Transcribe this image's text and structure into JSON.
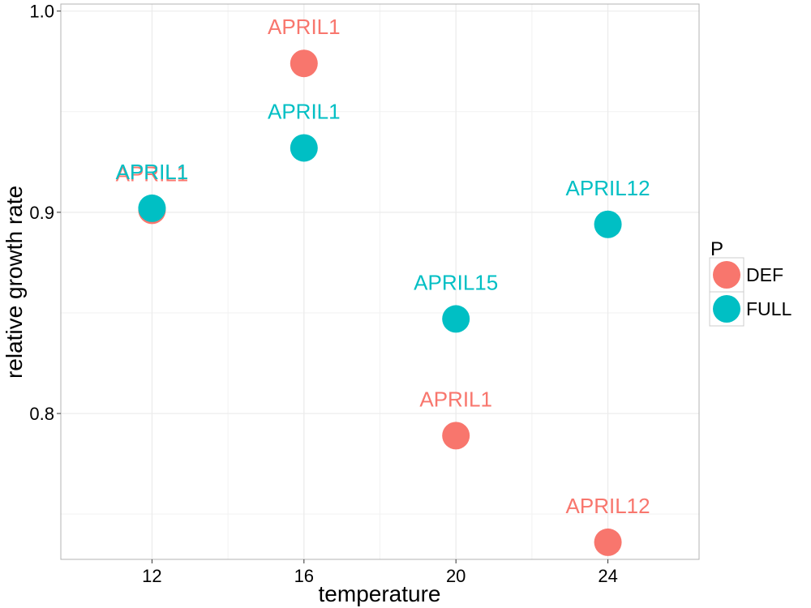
{
  "chart_data": {
    "type": "scatter",
    "title": "",
    "xlabel": "temperature",
    "ylabel": "relative growth rate",
    "xlim": [
      9.6,
      26.4
    ],
    "ylim": [
      0.7275,
      1.0035
    ],
    "x_ticks": [
      12,
      16,
      20,
      24
    ],
    "x_tick_labels": [
      "12",
      "16",
      "20",
      "24"
    ],
    "y_ticks": [
      0.8,
      0.9,
      1.0
    ],
    "y_tick_labels": [
      "0.8",
      "0.9",
      "1.0"
    ],
    "grid": true,
    "legend": {
      "title": "P",
      "position": "right",
      "entries": [
        "DEF",
        "FULL"
      ]
    },
    "series": [
      {
        "name": "DEF",
        "color": "#F8766D",
        "points": [
          {
            "x": 12,
            "y": 0.901,
            "label": "APRIL1"
          },
          {
            "x": 16,
            "y": 0.974,
            "label": "APRIL1"
          },
          {
            "x": 20,
            "y": 0.789,
            "label": "APRIL1"
          },
          {
            "x": 24,
            "y": 0.736,
            "label": "APRIL12"
          }
        ]
      },
      {
        "name": "FULL",
        "color": "#00BFC4",
        "points": [
          {
            "x": 12,
            "y": 0.902,
            "label": "APRIL1"
          },
          {
            "x": 16,
            "y": 0.932,
            "label": "APRIL1"
          },
          {
            "x": 20,
            "y": 0.847,
            "label": "APRIL15"
          },
          {
            "x": 24,
            "y": 0.894,
            "label": "APRIL12"
          }
        ]
      }
    ]
  }
}
